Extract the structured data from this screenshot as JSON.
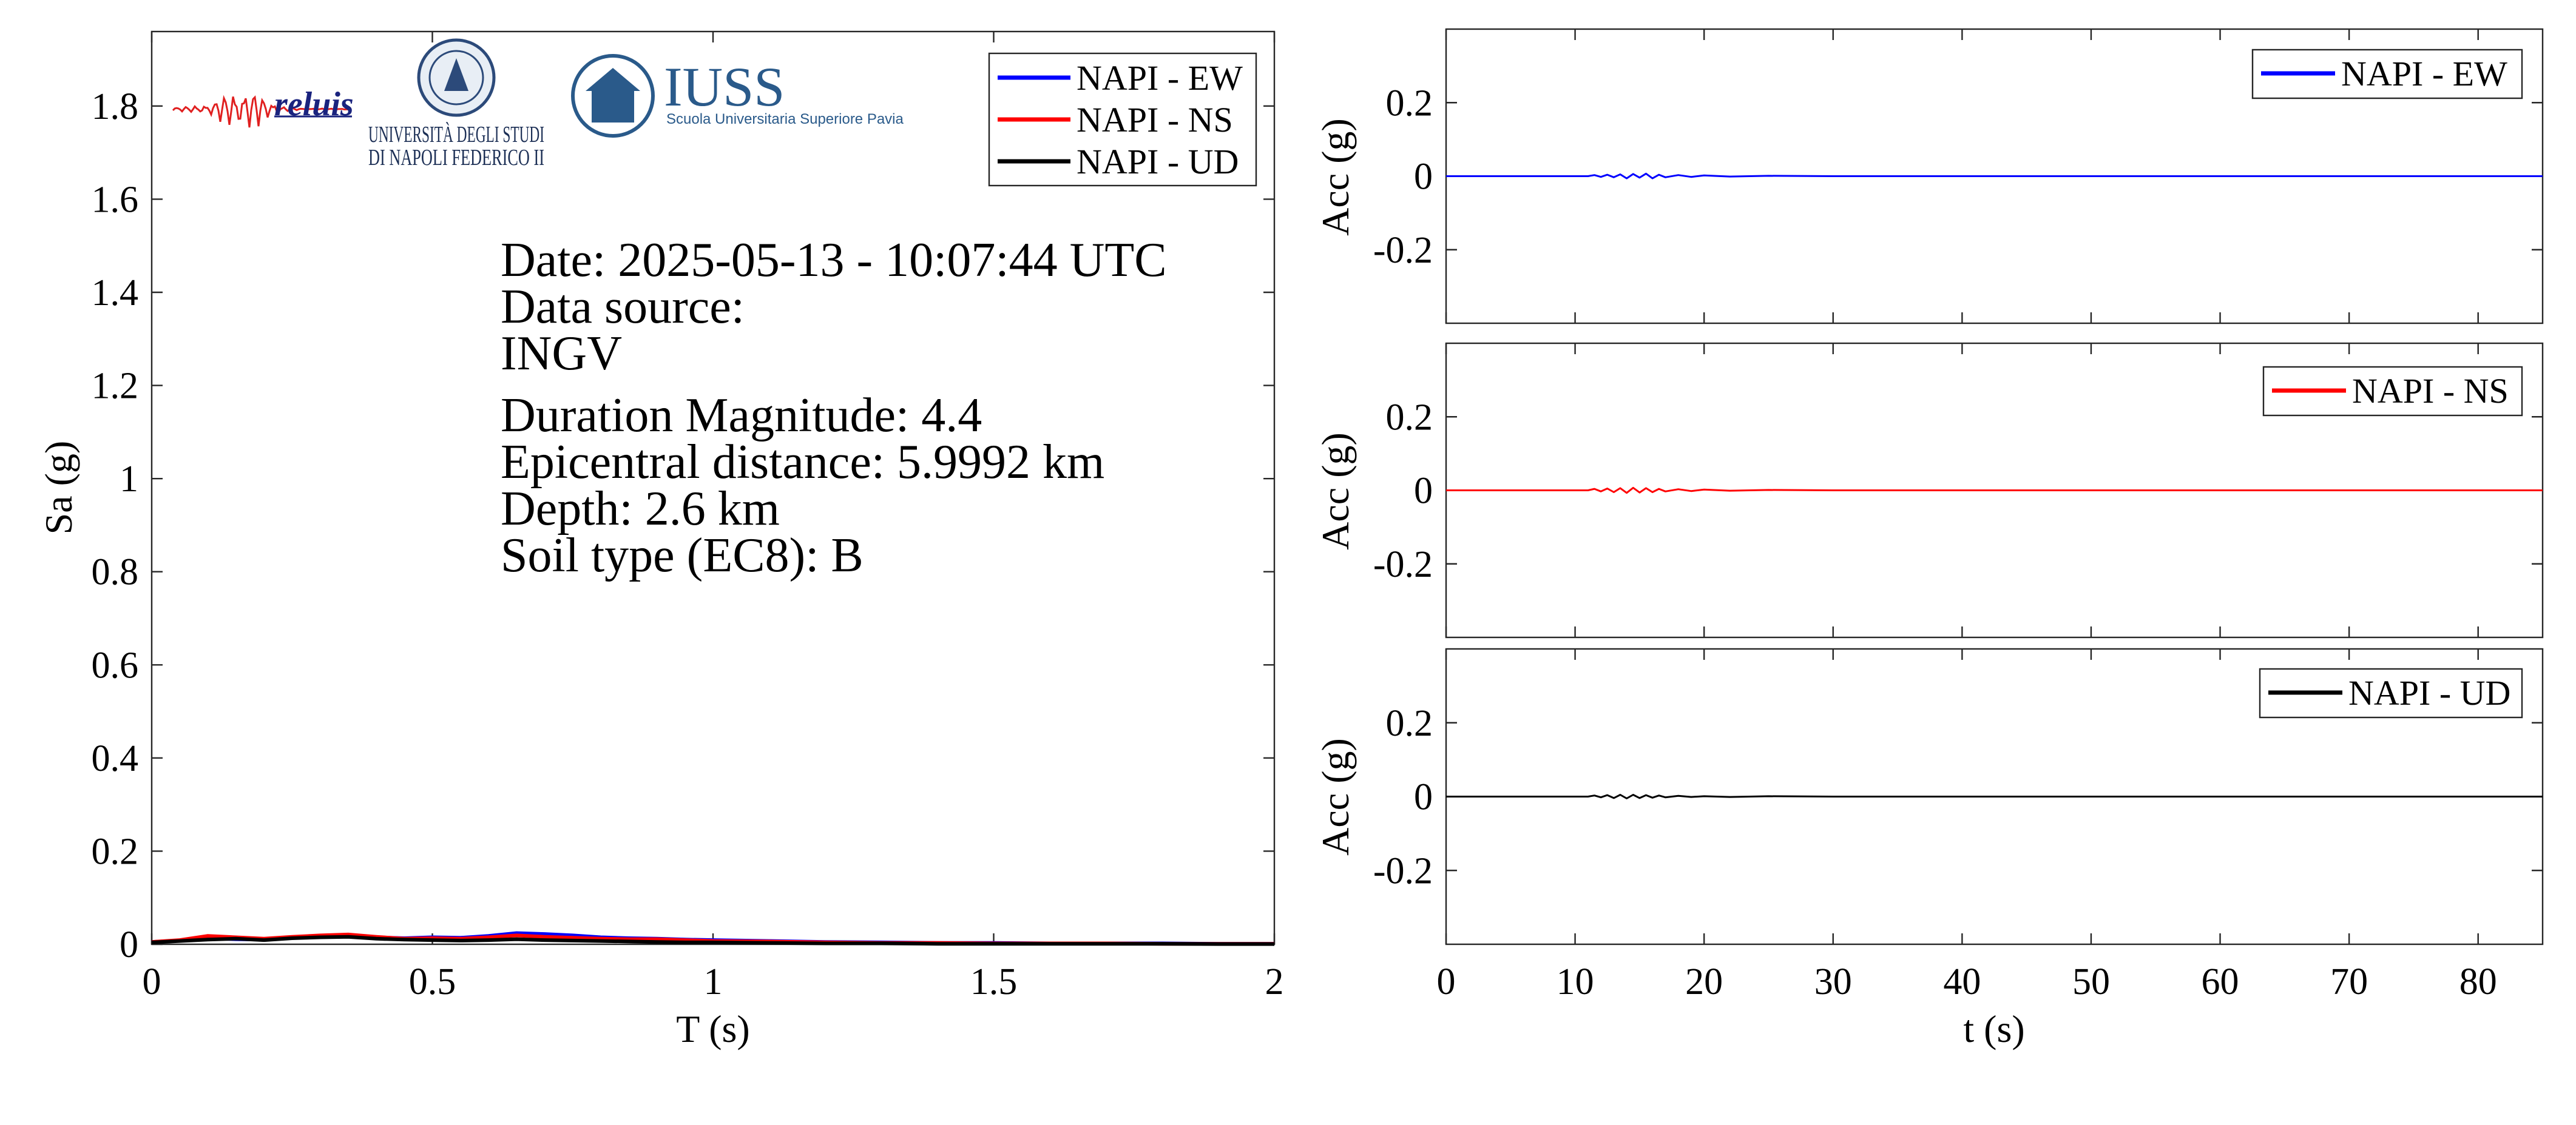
{
  "colors": {
    "ew": "#0000ff",
    "ns": "#ff0000",
    "ud": "#000000",
    "axis": "#262626",
    "iuss": "#2a5a8a"
  },
  "logos": {
    "reluis": "reluis",
    "unina_line1": "UNIVERSITÀ DEGLI STUDI",
    "unina_line2": "DI NAPOLI FEDERICO II",
    "iuss_title": "IUSS",
    "iuss_subtitle": "Scuola Universitaria Superiore Pavia"
  },
  "info": {
    "date": "Date: 2025-05-13 - 10:07:44 UTC",
    "source_label": "Data source:",
    "source": "INGV",
    "magnitude": "Duration Magnitude: 4.4",
    "distance": "Epicentral distance: 5.9992 km",
    "depth": "Depth: 2.6 km",
    "soil": "Soil type (EC8): B"
  },
  "chart_data": [
    {
      "type": "line",
      "xlabel": "T (s)",
      "ylabel": "Sa (g)",
      "xlim": [
        0,
        2
      ],
      "ylim": [
        0,
        1.96
      ],
      "xticks": [
        0,
        0.5,
        1,
        1.5,
        2
      ],
      "xtick_labels": [
        "0",
        "0.5",
        "1",
        "1.5",
        "2"
      ],
      "yticks": [
        0,
        0.2,
        0.4,
        0.6,
        0.8,
        1,
        1.2,
        1.4,
        1.6,
        1.8
      ],
      "ytick_labels": [
        "0",
        "0.2",
        "0.4",
        "0.6",
        "0.8",
        "1",
        "1.2",
        "1.4",
        "1.6",
        "1.8"
      ],
      "legend": "top-right",
      "grid": false,
      "series": [
        {
          "name": "NAPI - EW",
          "color": "#0000ff",
          "x": [
            0,
            0.05,
            0.1,
            0.15,
            0.2,
            0.25,
            0.3,
            0.35,
            0.4,
            0.45,
            0.5,
            0.55,
            0.6,
            0.65,
            0.7,
            0.75,
            0.8,
            0.85,
            0.9,
            0.95,
            1.0,
            1.1,
            1.2,
            1.3,
            1.4,
            1.5,
            1.6,
            1.7,
            1.8,
            1.9,
            2.0
          ],
          "y": [
            0.005,
            0.008,
            0.013,
            0.011,
            0.01,
            0.014,
            0.016,
            0.019,
            0.015,
            0.013,
            0.015,
            0.014,
            0.018,
            0.024,
            0.022,
            0.019,
            0.015,
            0.013,
            0.012,
            0.01,
            0.009,
            0.007,
            0.005,
            0.004,
            0.003,
            0.003,
            0.002,
            0.002,
            0.002,
            0.001,
            0.001
          ]
        },
        {
          "name": "NAPI - NS",
          "color": "#ff0000",
          "x": [
            0,
            0.05,
            0.1,
            0.15,
            0.2,
            0.25,
            0.3,
            0.35,
            0.4,
            0.45,
            0.5,
            0.55,
            0.6,
            0.65,
            0.7,
            0.75,
            0.8,
            0.85,
            0.9,
            0.95,
            1.0,
            1.1,
            1.2,
            1.3,
            1.4,
            1.5,
            1.6,
            1.7,
            1.8,
            1.9,
            2.0
          ],
          "y": [
            0.005,
            0.009,
            0.018,
            0.015,
            0.012,
            0.016,
            0.019,
            0.021,
            0.016,
            0.012,
            0.013,
            0.012,
            0.015,
            0.019,
            0.016,
            0.014,
            0.012,
            0.011,
            0.011,
            0.009,
            0.007,
            0.006,
            0.004,
            0.003,
            0.003,
            0.002,
            0.002,
            0.002,
            0.001,
            0.001,
            0.001
          ]
        },
        {
          "name": "NAPI - UD",
          "color": "#000000",
          "x": [
            0,
            0.05,
            0.1,
            0.15,
            0.2,
            0.25,
            0.3,
            0.35,
            0.4,
            0.45,
            0.5,
            0.55,
            0.6,
            0.65,
            0.7,
            0.75,
            0.8,
            0.85,
            0.9,
            0.95,
            1.0,
            1.1,
            1.2,
            1.3,
            1.4,
            1.5,
            1.6,
            1.7,
            1.8,
            1.9,
            2.0
          ],
          "y": [
            0.004,
            0.007,
            0.01,
            0.012,
            0.009,
            0.013,
            0.015,
            0.016,
            0.012,
            0.01,
            0.009,
            0.008,
            0.009,
            0.011,
            0.009,
            0.008,
            0.007,
            0.006,
            0.005,
            0.004,
            0.004,
            0.003,
            0.002,
            0.002,
            0.001,
            0.001,
            0.001,
            0.001,
            0.001,
            0.0005,
            0.0005
          ]
        }
      ]
    },
    {
      "type": "line",
      "xlabel": "",
      "ylabel": "Acc (g)",
      "xlim": [
        0,
        85
      ],
      "ylim": [
        -0.4,
        0.4
      ],
      "yticks": [
        -0.2,
        0,
        0.2
      ],
      "ytick_labels": [
        "-0.2",
        "0",
        "0.2"
      ],
      "legend": "top-right",
      "series": [
        {
          "name": "NAPI - EW",
          "color": "#0000ff",
          "x": [
            0,
            11,
            11.5,
            12,
            12.5,
            13,
            13.5,
            14,
            14.5,
            15,
            15.5,
            16,
            16.5,
            17,
            18,
            19,
            20,
            22,
            25,
            30,
            40,
            60,
            85
          ],
          "y": [
            0,
            0,
            0.003,
            -0.002,
            0.004,
            -0.003,
            0.005,
            -0.006,
            0.006,
            -0.004,
            0.007,
            -0.006,
            0.004,
            -0.003,
            0.003,
            -0.002,
            0.002,
            -0.001,
            0.001,
            0,
            0,
            0,
            0
          ]
        }
      ]
    },
    {
      "type": "line",
      "xlabel": "",
      "ylabel": "Acc (g)",
      "xlim": [
        0,
        85
      ],
      "ylim": [
        -0.4,
        0.4
      ],
      "yticks": [
        -0.2,
        0,
        0.2
      ],
      "ytick_labels": [
        "-0.2",
        "0",
        "0.2"
      ],
      "legend": "top-right",
      "series": [
        {
          "name": "NAPI - NS",
          "color": "#ff0000",
          "x": [
            0,
            11,
            11.5,
            12,
            12.5,
            13,
            13.5,
            14,
            14.5,
            15,
            15.5,
            16,
            16.5,
            17,
            18,
            19,
            20,
            22,
            25,
            30,
            40,
            60,
            85
          ],
          "y": [
            0,
            0,
            0.004,
            -0.003,
            0.005,
            -0.005,
            0.006,
            -0.007,
            0.007,
            -0.006,
            0.006,
            -0.005,
            0.004,
            -0.003,
            0.003,
            -0.002,
            0.002,
            -0.001,
            0.001,
            0,
            0,
            0,
            0
          ]
        }
      ]
    },
    {
      "type": "line",
      "xlabel": "t (s)",
      "ylabel": "Acc (g)",
      "xlim": [
        0,
        85
      ],
      "ylim": [
        -0.4,
        0.4
      ],
      "xticks": [
        0,
        10,
        20,
        30,
        40,
        50,
        60,
        70,
        80
      ],
      "xtick_labels": [
        "0",
        "10",
        "20",
        "30",
        "40",
        "50",
        "60",
        "70",
        "80"
      ],
      "yticks": [
        -0.2,
        0,
        0.2
      ],
      "ytick_labels": [
        "-0.2",
        "0",
        "0.2"
      ],
      "legend": "top-right",
      "series": [
        {
          "name": "NAPI - UD",
          "color": "#000000",
          "x": [
            0,
            11,
            11.5,
            12,
            12.5,
            13,
            13.5,
            14,
            14.5,
            15,
            15.5,
            16,
            16.5,
            17,
            18,
            19,
            20,
            22,
            25,
            30,
            40,
            60,
            85
          ],
          "y": [
            0,
            0,
            0.003,
            -0.002,
            0.004,
            -0.004,
            0.005,
            -0.005,
            0.005,
            -0.004,
            0.004,
            -0.003,
            0.003,
            -0.002,
            0.002,
            -0.001,
            0.001,
            -0.001,
            0.001,
            0,
            0,
            0,
            0
          ]
        }
      ]
    }
  ]
}
